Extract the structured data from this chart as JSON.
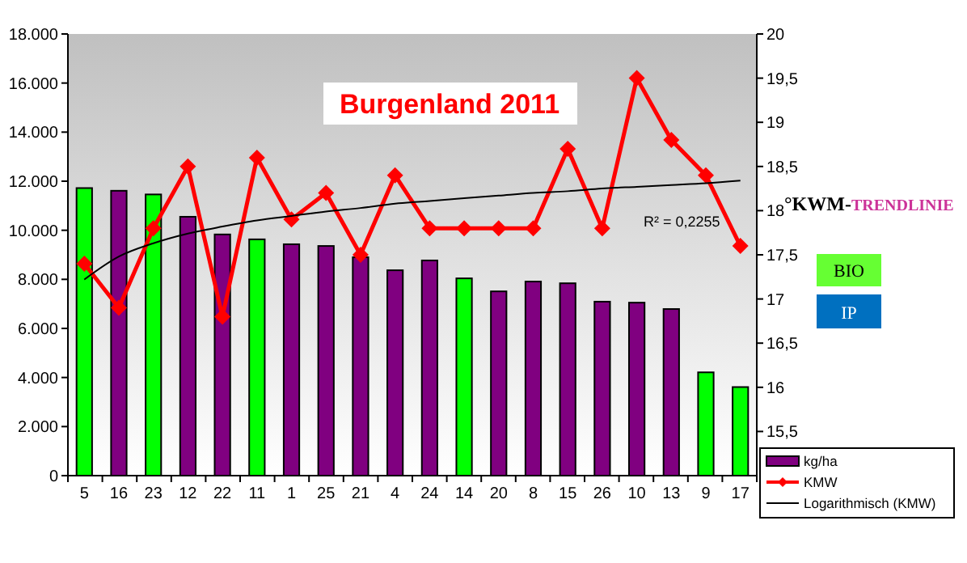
{
  "chart_data": {
    "type": "bar",
    "title": "Burgenland 2011",
    "categories": [
      "5",
      "16",
      "23",
      "12",
      "22",
      "11",
      "1",
      "25",
      "21",
      "4",
      "24",
      "14",
      "20",
      "8",
      "15",
      "26",
      "10",
      "13",
      "9",
      "17"
    ],
    "series": [
      {
        "name": "kg/ha",
        "color": "#800080",
        "colors": [
          "#00ff00",
          "#800080",
          "#00ff00",
          "#800080",
          "#800080",
          "#00ff00",
          "#800080",
          "#800080",
          "#800080",
          "#800080",
          "#800080",
          "#00ff00",
          "#800080",
          "#800080",
          "#800080",
          "#800080",
          "#800080",
          "#800080",
          "#00ff00",
          "#00ff00"
        ],
        "values": [
          11720,
          11610,
          11460,
          10550,
          9830,
          9630,
          9430,
          9360,
          8900,
          8370,
          8770,
          8040,
          7510,
          7910,
          7840,
          7090,
          7050,
          6790,
          4210,
          3610
        ]
      },
      {
        "name": "KMW",
        "type": "line",
        "axis": "y2",
        "color": "#ff0000",
        "marker": "diamond",
        "values": [
          17.4,
          16.9,
          17.8,
          18.5,
          16.8,
          18.6,
          17.9,
          18.2,
          17.5,
          18.4,
          17.8,
          17.8,
          17.8,
          17.8,
          18.7,
          17.8,
          19.5,
          18.8,
          18.4,
          17.6
        ]
      },
      {
        "name": "Logarithmisch (KMW)",
        "type": "line",
        "axis": "y2",
        "color": "#000000",
        "marker": "none",
        "values": [
          17.22,
          17.48,
          17.63,
          17.74,
          17.82,
          17.89,
          17.94,
          17.99,
          18.03,
          18.08,
          18.11,
          18.14,
          18.17,
          18.2,
          18.22,
          18.25,
          18.27,
          18.29,
          18.31,
          18.34
        ]
      }
    ],
    "ylim": [
      0,
      18000
    ],
    "yticks": [
      {
        "value": 0,
        "label": "0"
      },
      {
        "value": 2000,
        "label": "2.000"
      },
      {
        "value": 4000,
        "label": "4.000"
      },
      {
        "value": 6000,
        "label": "6.000"
      },
      {
        "value": 8000,
        "label": "8.000"
      },
      {
        "value": 10000,
        "label": "10.000"
      },
      {
        "value": 12000,
        "label": "12.000"
      },
      {
        "value": 14000,
        "label": "14.000"
      },
      {
        "value": 16000,
        "label": "16.000"
      },
      {
        "value": 18000,
        "label": "18.000"
      }
    ],
    "y2lim": [
      15,
      20
    ],
    "y2ticks": [
      {
        "value": 15.5,
        "label": "15,5"
      },
      {
        "value": 16,
        "label": "16"
      },
      {
        "value": 16.5,
        "label": "16,5"
      },
      {
        "value": 17,
        "label": "17"
      },
      {
        "value": 17.5,
        "label": "17,5"
      },
      {
        "value": 18,
        "label": "18"
      },
      {
        "value": 18.5,
        "label": "18,5"
      },
      {
        "value": 19,
        "label": "19"
      },
      {
        "value": 19.5,
        "label": "19,5"
      },
      {
        "value": 20,
        "label": "20"
      }
    ],
    "annotations": [
      "R² = 0,2255",
      "°KWM-TRENDLINIE",
      "BIO",
      "IP"
    ],
    "legend": "bottom right",
    "grid": false
  }
}
